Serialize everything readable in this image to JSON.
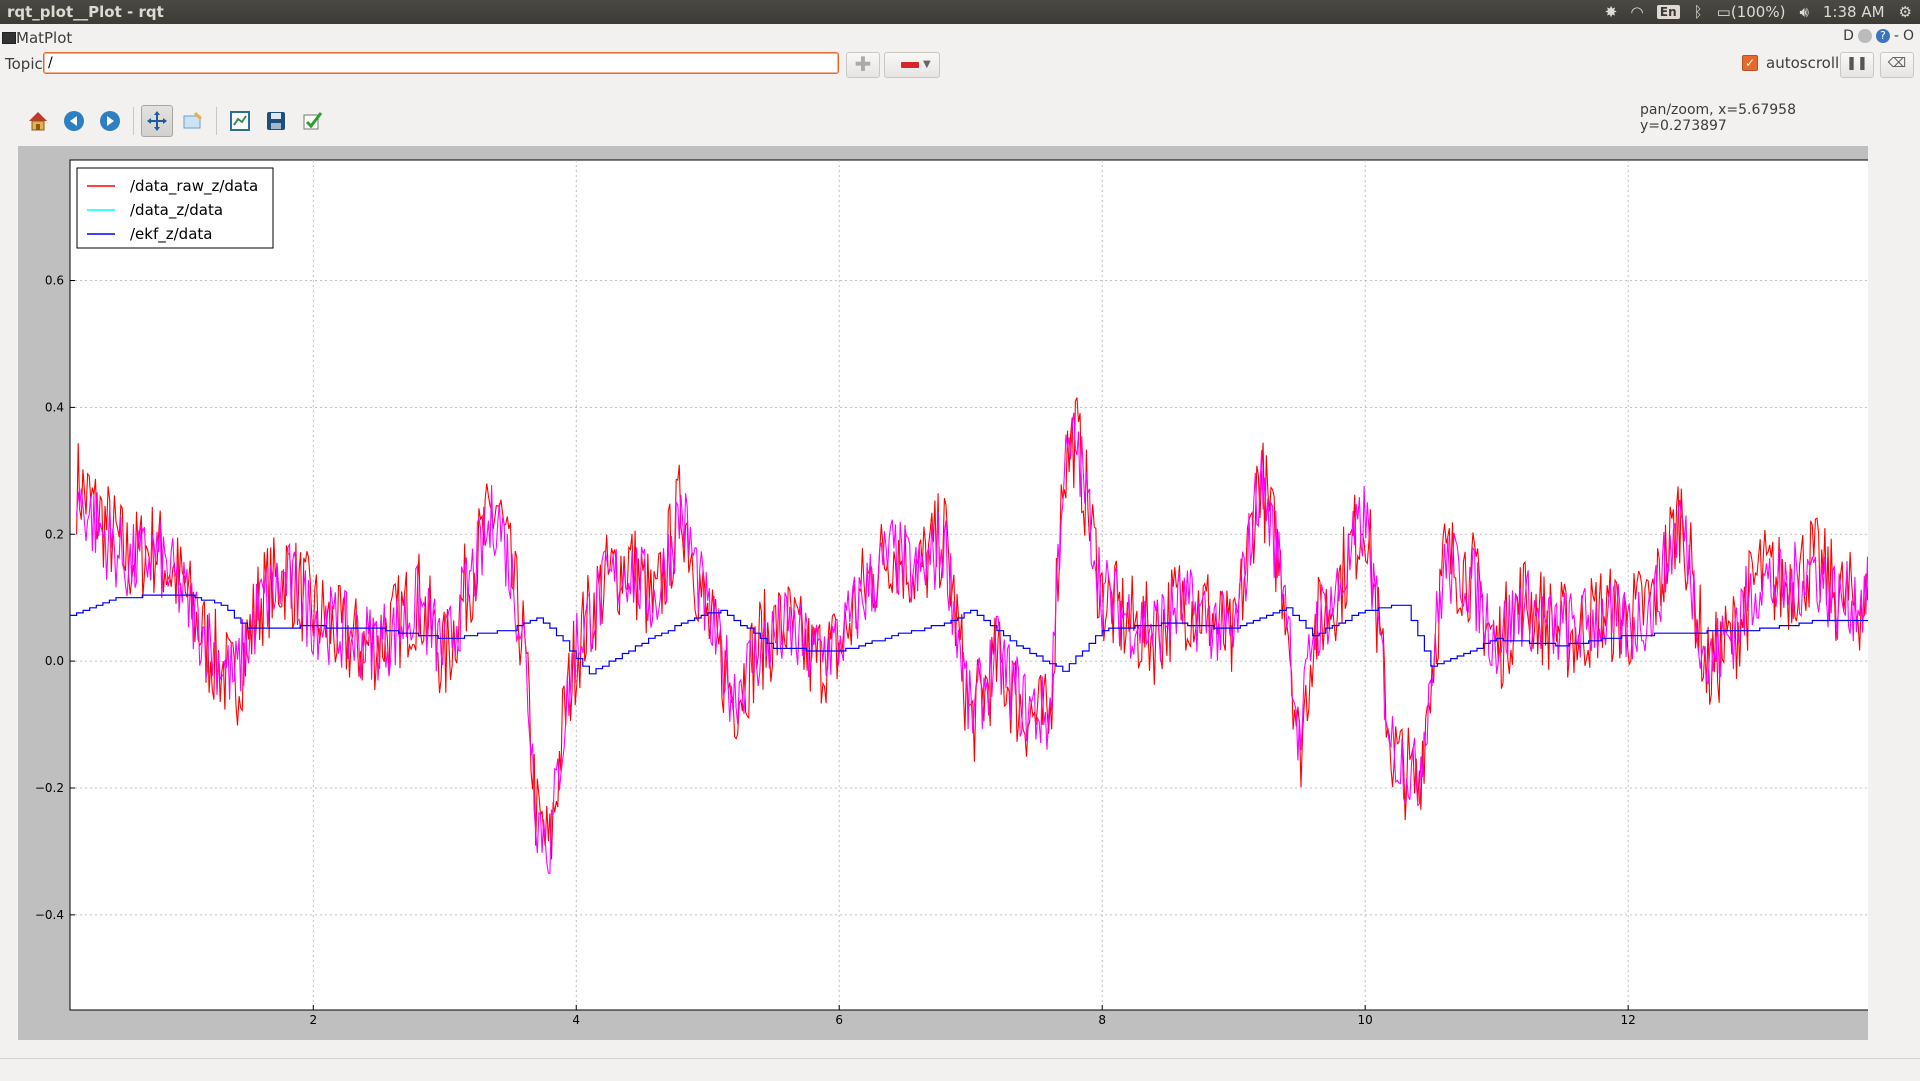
{
  "window": {
    "title": "rqt_plot__Plot - rqt"
  },
  "tray": {
    "keyboard": "En",
    "battery": "(100%)",
    "time": "1:38 AM"
  },
  "plugin": {
    "title": "MatPlot",
    "help_letter": "D",
    "minimize": "-",
    "close": "O"
  },
  "topic": {
    "label": "Topic",
    "value": "/"
  },
  "controls": {
    "autoscroll_label": "autoscroll",
    "autoscroll_checked": true
  },
  "toolbar": {
    "icons": [
      "home-icon",
      "back-icon",
      "forward-icon",
      "pan-icon",
      "zoom-icon",
      "configure-subplots-icon",
      "save-icon",
      "edit-check-icon"
    ],
    "active": "pan-icon"
  },
  "status": {
    "mode_x": "pan/zoom, x=5.67958",
    "y": "y=0.273897"
  },
  "colors": {
    "raw": "#ff0000",
    "data": "#00ffff",
    "ekf": "#0000ff",
    "overlay": "#ff00ff"
  },
  "chart_data": {
    "type": "line",
    "title": "",
    "xlabel": "",
    "ylabel": "",
    "xlim": [
      0.15,
      13.9
    ],
    "ylim": [
      -0.55,
      0.79
    ],
    "xticks": [
      2,
      4,
      6,
      8,
      10,
      12
    ],
    "yticks": [
      -0.4,
      -0.2,
      0.0,
      0.2,
      0.4,
      0.6
    ],
    "xtick_labels": [
      "2",
      "4",
      "6",
      "8",
      "10",
      "12"
    ],
    "ytick_labels": [
      "−0.4",
      "−0.2",
      "0.0",
      "0.2",
      "0.4",
      "0.6"
    ],
    "grid": true,
    "legend_position": "upper-left",
    "series": [
      {
        "name": "/data_raw_z/data",
        "color": "#ff0000",
        "x": [
          0.2,
          0.4,
          0.6,
          0.8,
          1.0,
          1.2,
          1.4,
          1.6,
          1.8,
          2.0,
          2.2,
          2.4,
          2.6,
          2.8,
          3.0,
          3.2,
          3.4,
          3.6,
          3.7,
          3.8,
          3.9,
          4.0,
          4.2,
          4.4,
          4.6,
          4.8,
          5.0,
          5.2,
          5.4,
          5.6,
          5.8,
          6.0,
          6.2,
          6.4,
          6.6,
          6.8,
          7.0,
          7.2,
          7.4,
          7.6,
          7.7,
          7.8,
          8.0,
          8.2,
          8.4,
          8.6,
          8.8,
          9.0,
          9.2,
          9.4,
          9.5,
          9.6,
          9.8,
          10.0,
          10.2,
          10.4,
          10.6,
          10.8,
          11.0,
          11.2,
          11.4,
          11.6,
          11.8,
          12.0,
          12.2,
          12.4,
          12.6,
          12.8,
          13.0,
          13.2,
          13.4,
          13.6,
          13.8
        ],
        "y": [
          0.28,
          0.22,
          0.16,
          0.18,
          0.12,
          0.02,
          -0.04,
          0.1,
          0.14,
          0.08,
          0.04,
          0.02,
          0.05,
          0.1,
          0.0,
          0.14,
          0.25,
          0.03,
          -0.25,
          -0.3,
          -0.1,
          0.02,
          0.12,
          0.16,
          0.08,
          0.25,
          0.06,
          -0.06,
          0.03,
          0.06,
          0.0,
          0.02,
          0.12,
          0.18,
          0.14,
          0.2,
          -0.1,
          0.0,
          -0.08,
          -0.1,
          0.3,
          0.36,
          0.1,
          0.06,
          0.04,
          0.1,
          0.08,
          0.02,
          0.3,
          0.1,
          -0.15,
          0.04,
          0.12,
          0.24,
          -0.14,
          -0.2,
          0.16,
          0.14,
          0.02,
          0.1,
          0.06,
          0.04,
          0.08,
          0.06,
          0.1,
          0.24,
          -0.02,
          0.04,
          0.14,
          0.12,
          0.16,
          0.1,
          0.09
        ]
      },
      {
        "name": "/data_z/data",
        "color": "#00ffff",
        "x": [
          0.2,
          0.4,
          0.6,
          0.8,
          1.0,
          1.2,
          1.4,
          1.6,
          1.8,
          2.0,
          2.2,
          2.4,
          2.6,
          2.8,
          3.0,
          3.2,
          3.4,
          3.6,
          3.7,
          3.8,
          3.9,
          4.0,
          4.2,
          4.4,
          4.6,
          4.8,
          5.0,
          5.2,
          5.4,
          5.6,
          5.8,
          6.0,
          6.2,
          6.4,
          6.6,
          6.8,
          7.0,
          7.2,
          7.4,
          7.6,
          7.7,
          7.8,
          8.0,
          8.2,
          8.4,
          8.6,
          8.8,
          9.0,
          9.2,
          9.4,
          9.5,
          9.6,
          9.8,
          10.0,
          10.2,
          10.4,
          10.6,
          10.8,
          11.0,
          11.2,
          11.4,
          11.6,
          11.8,
          12.0,
          12.2,
          12.4,
          12.6,
          12.8,
          13.0,
          13.2,
          13.4,
          13.6,
          13.8
        ],
        "y": [
          0.26,
          0.2,
          0.15,
          0.17,
          0.11,
          0.03,
          -0.03,
          0.09,
          0.13,
          0.07,
          0.05,
          0.03,
          0.04,
          0.09,
          0.01,
          0.13,
          0.24,
          0.04,
          -0.24,
          -0.29,
          -0.11,
          0.03,
          0.11,
          0.15,
          0.09,
          0.24,
          0.07,
          -0.05,
          0.02,
          0.05,
          0.01,
          0.03,
          0.11,
          0.17,
          0.13,
          0.19,
          -0.09,
          0.01,
          -0.07,
          -0.09,
          0.29,
          0.35,
          0.11,
          0.07,
          0.05,
          0.09,
          0.07,
          0.03,
          0.29,
          0.11,
          -0.14,
          0.05,
          0.11,
          0.23,
          -0.13,
          -0.19,
          0.15,
          0.13,
          0.03,
          0.09,
          0.05,
          0.05,
          0.07,
          0.05,
          0.09,
          0.23,
          -0.01,
          0.05,
          0.13,
          0.11,
          0.15,
          0.09,
          0.1
        ]
      },
      {
        "name": "/ekf_z/data",
        "color": "#0000ff",
        "x": [
          0.15,
          0.5,
          1.0,
          1.3,
          1.5,
          2.0,
          2.5,
          3.0,
          3.5,
          3.7,
          3.9,
          4.1,
          4.5,
          4.9,
          5.1,
          5.5,
          6.0,
          6.4,
          6.8,
          7.0,
          7.3,
          7.7,
          8.0,
          8.5,
          9.0,
          9.2,
          9.4,
          9.6,
          10.0,
          10.3,
          10.5,
          11.0,
          11.5,
          12.0,
          12.5,
          13.0,
          13.5,
          13.9
        ],
        "y": [
          0.07,
          0.1,
          0.105,
          0.09,
          0.05,
          0.055,
          0.05,
          0.035,
          0.05,
          0.07,
          0.03,
          -0.02,
          0.03,
          0.07,
          0.08,
          0.02,
          0.015,
          0.04,
          0.06,
          0.08,
          0.03,
          -0.015,
          0.05,
          0.06,
          0.05,
          0.07,
          0.085,
          0.04,
          0.08,
          0.09,
          -0.01,
          0.035,
          0.025,
          0.04,
          0.045,
          0.05,
          0.065,
          0.065
        ]
      }
    ]
  }
}
